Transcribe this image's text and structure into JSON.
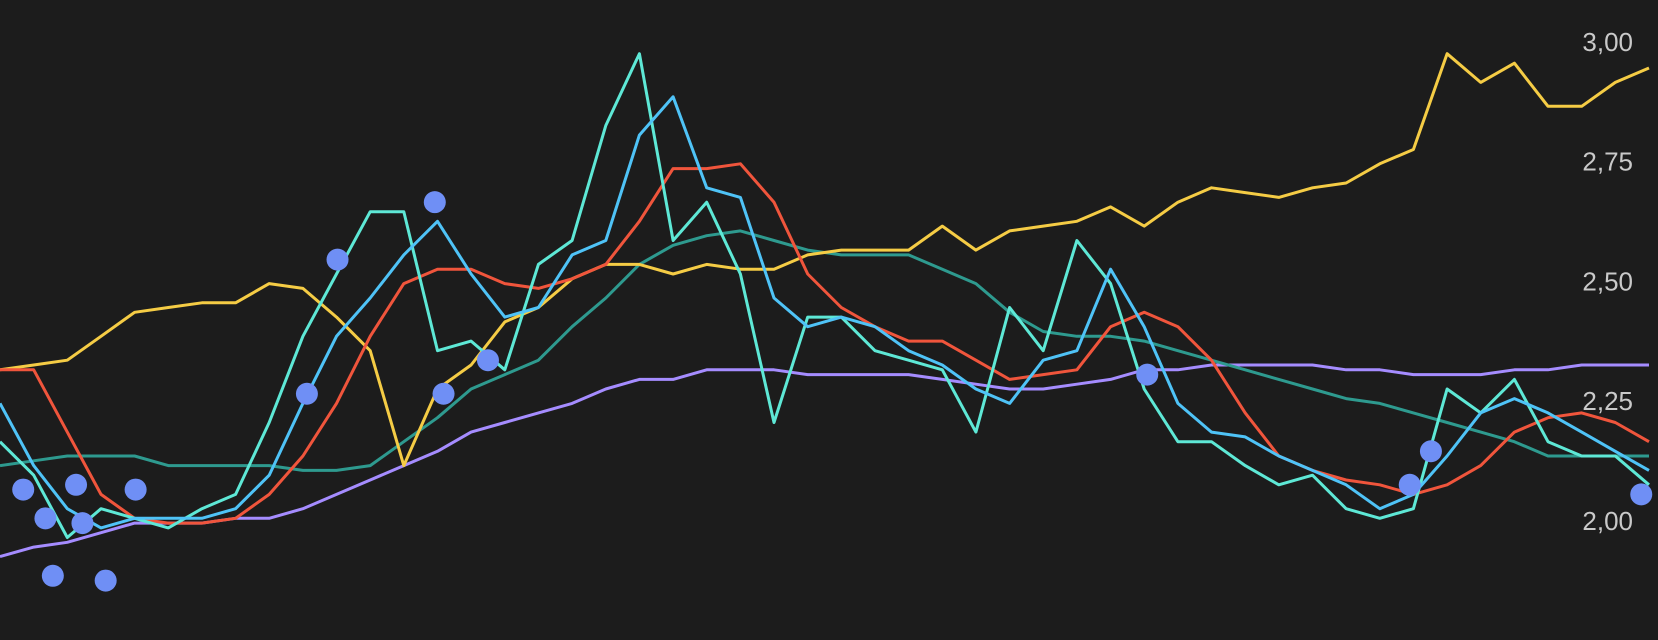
{
  "chart_data": {
    "type": "line",
    "categories": [
      null,
      null,
      null,
      null,
      null,
      null,
      null,
      null,
      null,
      null,
      null,
      null,
      null,
      null,
      null,
      null,
      null,
      null,
      null,
      null,
      null,
      null,
      null,
      null,
      null,
      null,
      null,
      null,
      null,
      null,
      null,
      null,
      null,
      null,
      null,
      null,
      null,
      null,
      null,
      null,
      null,
      null,
      null,
      null,
      null,
      null,
      null,
      null,
      null,
      null
    ],
    "ylim": [
      1.756,
      3.092
    ],
    "yticks": [
      {
        "value": 2.0,
        "label": "2,00"
      },
      {
        "value": 2.25,
        "label": "2,25"
      },
      {
        "value": 2.5,
        "label": "2,50"
      },
      {
        "value": 2.75,
        "label": "2,75"
      },
      {
        "value": 3.0,
        "label": "3,00"
      }
    ],
    "grid": false,
    "series": [
      {
        "color": "#a58cff",
        "values": [
          1.93,
          1.95,
          1.96,
          1.98,
          2.0,
          2.0,
          2.0,
          2.01,
          2.01,
          2.03,
          2.06,
          2.09,
          2.12,
          2.15,
          2.19,
          2.21,
          2.23,
          2.25,
          2.28,
          2.3,
          2.3,
          2.32,
          2.32,
          2.32,
          2.31,
          2.31,
          2.31,
          2.31,
          2.3,
          2.29,
          2.28,
          2.28,
          2.29,
          2.3,
          2.32,
          2.32,
          2.33,
          2.33,
          2.33,
          2.33,
          2.32,
          2.32,
          2.31,
          2.31,
          2.31,
          2.32,
          2.32,
          2.33,
          2.33,
          2.33
        ]
      },
      {
        "color": "#2e9a8f",
        "values": [
          2.12,
          2.13,
          2.14,
          2.14,
          2.14,
          2.12,
          2.12,
          2.12,
          2.12,
          2.11,
          2.11,
          2.12,
          2.17,
          2.22,
          2.28,
          2.31,
          2.34,
          2.41,
          2.47,
          2.54,
          2.58,
          2.6,
          2.61,
          2.59,
          2.57,
          2.56,
          2.56,
          2.56,
          2.53,
          2.5,
          2.44,
          2.4,
          2.39,
          2.39,
          2.38,
          2.36,
          2.34,
          2.32,
          2.3,
          2.28,
          2.26,
          2.25,
          2.23,
          2.21,
          2.19,
          2.17,
          2.14,
          2.14,
          2.14,
          2.14
        ]
      },
      {
        "color": "#f5cc45",
        "values": [
          2.32,
          2.33,
          2.34,
          2.39,
          2.44,
          2.45,
          2.46,
          2.46,
          2.5,
          2.49,
          2.43,
          2.36,
          2.12,
          2.28,
          2.33,
          2.42,
          2.45,
          2.51,
          2.54,
          2.54,
          2.52,
          2.54,
          2.53,
          2.53,
          2.56,
          2.57,
          2.57,
          2.57,
          2.62,
          2.57,
          2.61,
          2.62,
          2.63,
          2.66,
          2.62,
          2.67,
          2.7,
          2.69,
          2.68,
          2.7,
          2.71,
          2.75,
          2.78,
          2.98,
          2.92,
          2.96,
          2.87,
          2.87,
          2.92,
          2.95
        ]
      },
      {
        "color": "#f0553c",
        "values": [
          2.32,
          2.32,
          2.19,
          2.06,
          2.01,
          2.0,
          2.0,
          2.01,
          2.06,
          2.14,
          2.25,
          2.39,
          2.5,
          2.53,
          2.53,
          2.5,
          2.49,
          2.51,
          2.54,
          2.63,
          2.74,
          2.74,
          2.75,
          2.67,
          2.52,
          2.45,
          2.41,
          2.38,
          2.38,
          2.34,
          2.3,
          2.31,
          2.32,
          2.41,
          2.44,
          2.41,
          2.34,
          2.23,
          2.14,
          2.11,
          2.09,
          2.08,
          2.06,
          2.08,
          2.12,
          2.19,
          2.22,
          2.23,
          2.21,
          2.17
        ]
      },
      {
        "color": "#5ee8d6",
        "values": [
          2.17,
          2.1,
          1.97,
          2.03,
          2.01,
          1.99,
          2.03,
          2.06,
          2.21,
          2.39,
          2.52,
          2.65,
          2.65,
          2.36,
          2.38,
          2.32,
          2.54,
          2.59,
          2.83,
          2.98,
          2.59,
          2.67,
          2.52,
          2.21,
          2.43,
          2.43,
          2.36,
          2.34,
          2.32,
          2.19,
          2.45,
          2.36,
          2.59,
          2.5,
          2.28,
          2.17,
          2.17,
          2.12,
          2.08,
          2.1,
          2.03,
          2.01,
          2.03,
          2.28,
          2.23,
          2.3,
          2.17,
          2.14,
          2.14,
          2.08
        ]
      },
      {
        "color": "#4fc3f7",
        "values": [
          2.25,
          2.12,
          2.03,
          1.99,
          2.01,
          2.01,
          2.01,
          2.03,
          2.1,
          2.25,
          2.39,
          2.47,
          2.56,
          2.63,
          2.52,
          2.43,
          2.45,
          2.56,
          2.59,
          2.81,
          2.89,
          2.7,
          2.68,
          2.47,
          2.41,
          2.43,
          2.41,
          2.36,
          2.33,
          2.28,
          2.25,
          2.34,
          2.36,
          2.53,
          2.41,
          2.25,
          2.19,
          2.18,
          2.14,
          2.11,
          2.08,
          2.03,
          2.06,
          2.14,
          2.23,
          2.26,
          2.23,
          2.19,
          2.15,
          2.11
        ]
      }
    ],
    "markers": {
      "color": "#6f8ff5",
      "x": [
        0.69,
        1.35,
        1.57,
        2.26,
        2.45,
        3.14,
        4.03,
        9.12,
        10.03,
        12.92,
        13.18,
        14.5,
        34.09,
        41.89,
        42.52,
        48.77
      ],
      "values": [
        2.07,
        2.01,
        1.89,
        2.08,
        2.0,
        1.88,
        2.07,
        2.27,
        2.55,
        2.67,
        2.27,
        2.34,
        2.31,
        2.08,
        2.15,
        2.06
      ]
    }
  }
}
